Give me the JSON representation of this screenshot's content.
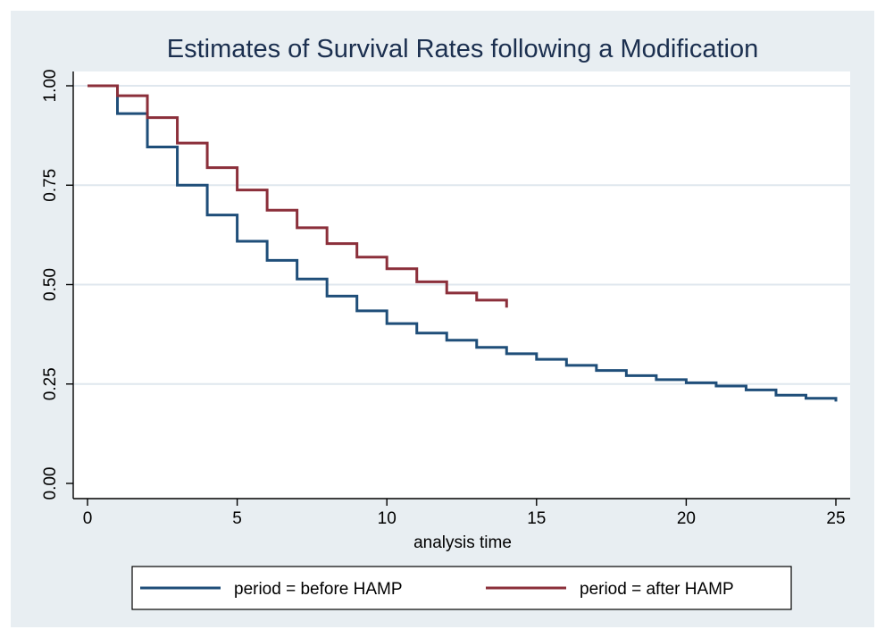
{
  "chart_data": {
    "type": "line",
    "step": true,
    "title": "Estimates of Survival Rates following a Modification",
    "xlabel": "analysis time",
    "ylabel": "",
    "xlim": [
      0,
      25
    ],
    "ylim": [
      0,
      1
    ],
    "x_ticks": [
      0,
      5,
      10,
      15,
      20,
      25
    ],
    "x_tick_labels": [
      "0",
      "5",
      "10",
      "15",
      "20",
      "25"
    ],
    "y_ticks": [
      0,
      0.25,
      0.5,
      0.75,
      1
    ],
    "y_tick_labels": [
      "0.00",
      "0.25",
      "0.50",
      "0.75",
      "1.00"
    ],
    "grid": "horizontal",
    "legend_position": "bottom",
    "series": [
      {
        "name": "period = before HAMP",
        "color": "#1f4e79",
        "end_x": 25,
        "x": [
          0,
          1,
          2,
          3,
          4,
          5,
          6,
          7,
          8,
          9,
          10,
          11,
          12,
          13,
          14,
          15,
          16,
          17,
          18,
          19,
          20,
          21,
          22,
          23,
          24,
          25
        ],
        "values": [
          1.0,
          0.93,
          0.846,
          0.75,
          0.675,
          0.609,
          0.561,
          0.514,
          0.471,
          0.434,
          0.402,
          0.378,
          0.36,
          0.342,
          0.326,
          0.312,
          0.297,
          0.284,
          0.271,
          0.261,
          0.253,
          0.245,
          0.235,
          0.222,
          0.214,
          0.206
        ]
      },
      {
        "name": "period = after HAMP",
        "color": "#8b2f3a",
        "end_x": 14,
        "x": [
          0,
          1,
          2,
          3,
          4,
          5,
          6,
          7,
          8,
          9,
          10,
          11,
          12,
          13,
          14
        ],
        "values": [
          1.0,
          0.975,
          0.92,
          0.856,
          0.794,
          0.738,
          0.687,
          0.643,
          0.603,
          0.569,
          0.54,
          0.507,
          0.479,
          0.461,
          0.442
        ]
      }
    ]
  }
}
